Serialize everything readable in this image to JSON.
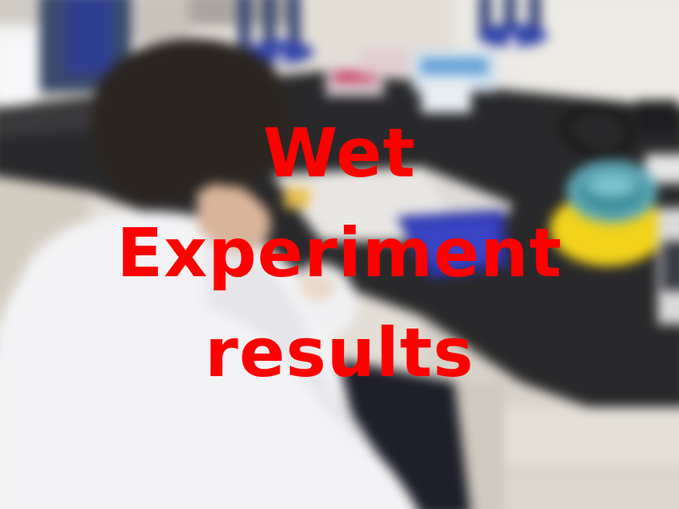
{
  "overlay": {
    "line1": "Wet",
    "line2": "Experiment",
    "line3": "results",
    "color": "#ff0000"
  },
  "scene": {
    "description_colors": {
      "wall": "#e6e2da",
      "bench_top": "#2a2a2c",
      "lab_coat": "#f2f2f4",
      "hair": "#2b2520",
      "centrifuge_yellow": "#f2d21a",
      "rack_blue": "#3a3fb8"
    }
  }
}
